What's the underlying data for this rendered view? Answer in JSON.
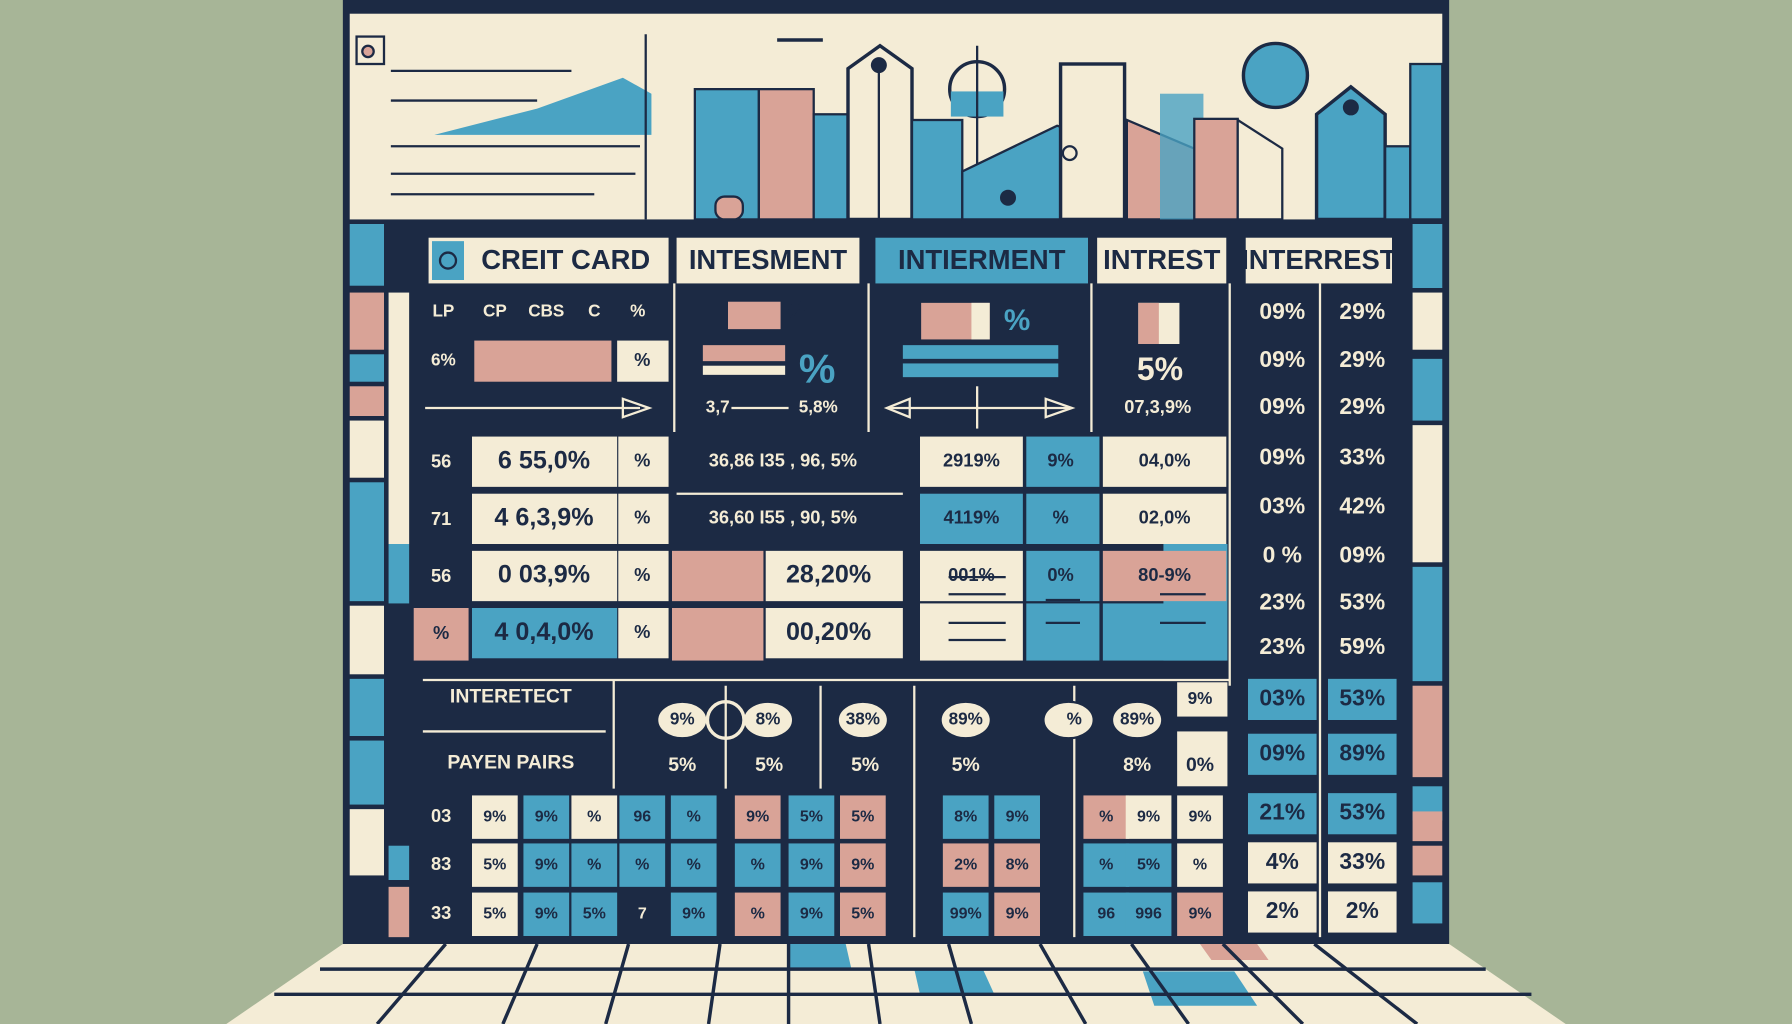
{
  "headers": [
    "CREIT CARD",
    "INTESMENT",
    "INTIERMENT",
    "INTREST",
    "INTERREST"
  ],
  "sub_labels": [
    "LP",
    "CP",
    "CBS",
    "C",
    "%"
  ],
  "top_cells": [
    "6%",
    "%",
    "%",
    "%",
    "%",
    "3,7",
    "5,8%",
    "5%",
    "07,3,9%"
  ],
  "rows": [
    {
      "label": "56",
      "cells": [
        "6 55,0%",
        "%",
        "36,86 I35 , 96, 5%",
        "2919%",
        "9%",
        "04,0%"
      ]
    },
    {
      "label": "71",
      "cells": [
        "4 6,3,9%",
        "%",
        "36,60 I55 , 90, 5%",
        "4119%",
        "%",
        "02,0%"
      ]
    },
    {
      "label": "56",
      "cells": [
        "0 03,9%",
        "%",
        "28,20%",
        "001%",
        "0%",
        "80-9%"
      ]
    },
    {
      "label": "%",
      "cells": [
        "4 0,4,0%",
        "%",
        "00,20%"
      ]
    }
  ],
  "right_columns": [
    [
      "09%",
      "09%",
      "09%",
      "09%",
      "03%",
      "0 %",
      "23%",
      "23%",
      "03%",
      "09%",
      "21%",
      "4%",
      "2%"
    ],
    [
      "29%",
      "29%",
      "29%",
      "33%",
      "42%",
      "09%",
      "53%",
      "59%",
      "53%",
      "89%",
      "53%",
      "33%",
      "2%"
    ]
  ],
  "lower": {
    "labels": [
      "INTERETECT",
      "PAYEN PAIRS"
    ],
    "bubbles": [
      "9%",
      "8%",
      "38%",
      "89%",
      "%",
      "89%",
      "9%"
    ],
    "notes": [
      "5%",
      "5%",
      "5%",
      "5%",
      "8%",
      "0%"
    ]
  },
  "grid": {
    "row_labels": [
      "03",
      "83",
      "33"
    ],
    "rows": [
      [
        "9%",
        "9%",
        "%",
        "96",
        "%",
        "9%",
        "5%",
        "5%",
        "8%",
        "9%",
        "%",
        "9%",
        "9%"
      ],
      [
        "5%",
        "9%",
        "%",
        "%",
        "%",
        "%",
        "9%",
        "9%",
        "2%",
        "8%",
        "%",
        "5%",
        "%"
      ],
      [
        "5%",
        "9%",
        "5%",
        "7",
        "9%",
        "%",
        "9%",
        "5%",
        "99%",
        "9%",
        "96",
        "996",
        "9%"
      ]
    ]
  }
}
